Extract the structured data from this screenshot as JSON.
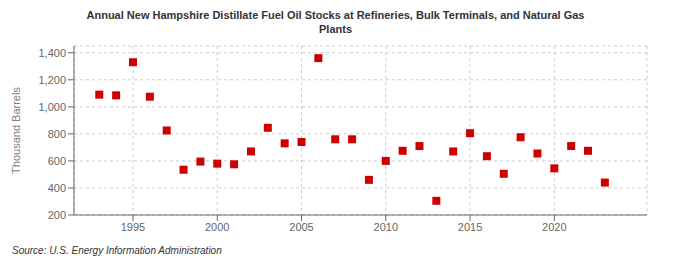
{
  "chart_data": {
    "type": "scatter",
    "title": "Annual New Hampshire Distillate Fuel Oil Stocks at Refineries, Bulk Terminals, and Natural Gas\nPlants",
    "ylabel": "Thousand Barrels",
    "source": "Source: U.S. Energy Information Administration",
    "color": "#cc0000",
    "marker": "square",
    "grid": true,
    "x": [
      1993,
      1994,
      1995,
      1996,
      1997,
      1998,
      1999,
      2000,
      2001,
      2002,
      2003,
      2004,
      2005,
      2006,
      2007,
      2008,
      2009,
      2010,
      2011,
      2012,
      2013,
      2014,
      2015,
      2016,
      2017,
      2018,
      2019,
      2020,
      2021,
      2022,
      2023
    ],
    "values": [
      1090,
      1085,
      1330,
      1075,
      825,
      535,
      595,
      580,
      575,
      670,
      845,
      730,
      740,
      1360,
      760,
      760,
      460,
      600,
      675,
      710,
      305,
      670,
      805,
      635,
      505,
      775,
      655,
      545,
      710,
      675,
      440
    ],
    "xlim": [
      1991.5,
      2025.5
    ],
    "xticks": [
      1995,
      2000,
      2005,
      2010,
      2015,
      2020
    ],
    "ylim": [
      200,
      1450
    ],
    "yticks": [
      200,
      400,
      600,
      800,
      {
        "value": 1000,
        "label": "1,000"
      },
      {
        "value": 1200,
        "label": "1,200"
      },
      {
        "value": 1400,
        "label": "1,400"
      }
    ]
  }
}
